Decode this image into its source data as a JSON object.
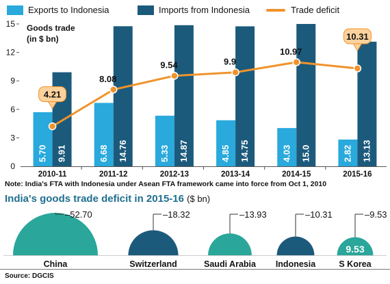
{
  "chart_data": [
    {
      "type": "bar",
      "title": "",
      "y_caption": [
        "Goods trade",
        "(in $ bn)"
      ],
      "categories": [
        "2010-11",
        "2011-12",
        "2012-13",
        "2013-14",
        "2014-15",
        "2015-16"
      ],
      "series": [
        {
          "name": "Exports to Indonesia",
          "type": "bar",
          "values": [
            5.7,
            6.68,
            5.33,
            4.85,
            4.03,
            2.82
          ],
          "labels": [
            "5.70",
            "6.68",
            "5.33",
            "4.85",
            "4.03",
            "2.82"
          ],
          "color": "#29a9dc"
        },
        {
          "name": "Imports from Indonesia",
          "type": "bar",
          "values": [
            9.91,
            14.76,
            14.87,
            14.75,
            15.0,
            13.13
          ],
          "labels": [
            "9.91",
            "14.76",
            "14.87",
            "14.75",
            "15.0",
            "13.13"
          ],
          "color": "#1c5a7c"
        },
        {
          "name": "Trade deficit",
          "type": "line",
          "values": [
            4.21,
            8.08,
            9.54,
            9.9,
            10.97,
            10.31
          ],
          "labels": [
            "4.21",
            "8.08",
            "9.54",
            "9.9",
            "10.97",
            "10.31"
          ],
          "color": "#f0932b"
        }
      ],
      "ylim": [
        0,
        15
      ],
      "yticks": [
        "0",
        "3",
        "6",
        "9",
        "12",
        "15"
      ],
      "legend_position": "top",
      "grid": false
    },
    {
      "type": "semicircle",
      "title": "India's goods trade deficit in 2015-16",
      "unit": "($ bn)",
      "categories": [
        "China",
        "Switzerland",
        "Saudi Arabia",
        "Indonesia",
        "S Korea"
      ],
      "values": [
        52.7,
        18.32,
        13.93,
        10.31,
        9.53
      ],
      "labels": [
        "52.70",
        "18.32",
        "13.93",
        "10.31",
        "9.53"
      ],
      "inner_label": "9.53",
      "colors": [
        "#2aa69a",
        "#1c5a7c",
        "#2aa69a",
        "#1c5a7c",
        "#2aa69a"
      ]
    }
  ],
  "note": "Note: India's FTA with Indonesia under Asean FTA framework came into force from Oct 1, 2010",
  "source": "Source: DGCIS",
  "colors": {
    "deficit_label_bg": "#fbd29c",
    "deficit_label_border": "#f0932b"
  }
}
